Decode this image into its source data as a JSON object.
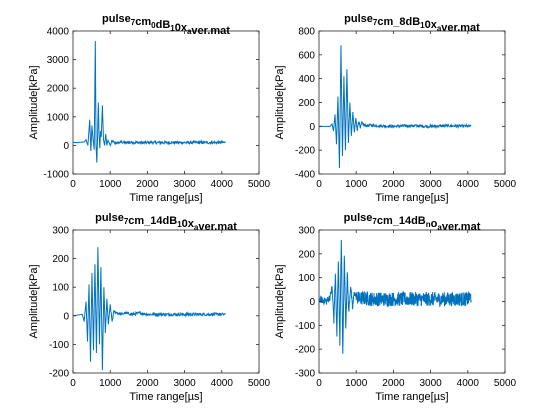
{
  "colors": {
    "line": "#0072BD",
    "axes": "#262626",
    "background": "#ffffff"
  },
  "chart_data": [
    {
      "type": "line",
      "title_parts": [
        [
          "pulse",
          ""
        ],
        [
          "7",
          "sub"
        ],
        [
          "cm",
          ""
        ],
        [
          "0",
          "sub"
        ],
        [
          "dB",
          ""
        ],
        [
          "1",
          "sub"
        ],
        [
          "0x",
          ""
        ],
        [
          "a",
          "sub"
        ],
        [
          "ver.mat",
          ""
        ]
      ],
      "xlabel": "Time range[µs]",
      "ylabel": "Amplitude[kPa]",
      "xlim": [
        0,
        5000
      ],
      "ylim": [
        -1000,
        4000
      ],
      "xticks": [
        "0",
        "1000",
        "2000",
        "3000",
        "4000",
        "5000"
      ],
      "yticks": [
        "-1000",
        "0",
        "1000",
        "2000",
        "3000",
        "4000"
      ],
      "grid": false,
      "series": [
        {
          "x": [
            0,
            100,
            200,
            300,
            350,
            400,
            450,
            480,
            510,
            540,
            570,
            600,
            620,
            640,
            660,
            680,
            700,
            720,
            740,
            760,
            790,
            820,
            850,
            880,
            910,
            940,
            970,
            1000,
            1050,
            1100,
            1200,
            1300,
            1400,
            1600,
            1800,
            2000,
            2500,
            3000,
            3500,
            4000,
            4090
          ],
          "y": [
            100,
            100,
            110,
            120,
            200,
            0,
            900,
            -200,
            700,
            200,
            -150,
            3650,
            0,
            -600,
            300,
            1500,
            400,
            -100,
            500,
            300,
            1400,
            200,
            0,
            400,
            0,
            180,
            100,
            0,
            150,
            100,
            80,
            120,
            90,
            110,
            95,
            100,
            100,
            100,
            100,
            100,
            100
          ]
        }
      ]
    },
    {
      "type": "line",
      "title_parts": [
        [
          "pulse",
          ""
        ],
        [
          "7",
          "sub"
        ],
        [
          "cm_8dB",
          ""
        ],
        [
          "1",
          "sub"
        ],
        [
          "0x",
          ""
        ],
        [
          "a",
          "sub"
        ],
        [
          "ver.mat",
          ""
        ]
      ],
      "xlabel": "Time range[µs]",
      "ylabel": "Amplitude[kPa]",
      "xlim": [
        0,
        5000
      ],
      "ylim": [
        -400,
        800
      ],
      "xticks": [
        "0",
        "1000",
        "2000",
        "3000",
        "4000",
        "5000"
      ],
      "yticks": [
        "-400",
        "-200",
        "0",
        "200",
        "400",
        "600",
        "800"
      ],
      "grid": false,
      "series": [
        {
          "x": [
            0,
            300,
            350,
            390,
            430,
            470,
            510,
            550,
            590,
            630,
            670,
            710,
            750,
            790,
            830,
            870,
            910,
            950,
            990,
            1030,
            1070,
            1110,
            1150,
            1200,
            1300,
            1400,
            1600,
            2000,
            2500,
            3000,
            3500,
            4090
          ],
          "y": [
            0,
            0,
            20,
            -40,
            100,
            -150,
            250,
            -350,
            680,
            -250,
            420,
            -200,
            480,
            -140,
            200,
            -80,
            120,
            -50,
            70,
            -30,
            50,
            -20,
            30,
            10,
            5,
            10,
            5,
            0,
            5,
            0,
            5,
            0
          ]
        }
      ]
    },
    {
      "type": "line",
      "title_parts": [
        [
          "pulse",
          ""
        ],
        [
          "7",
          "sub"
        ],
        [
          "cm_14dB",
          ""
        ],
        [
          "1",
          "sub"
        ],
        [
          "0x",
          ""
        ],
        [
          "a",
          "sub"
        ],
        [
          "ver.mat",
          ""
        ]
      ],
      "xlabel": "Time range[µs]",
      "ylabel": "Amplitude[kPa]",
      "xlim": [
        0,
        5000
      ],
      "ylim": [
        -200,
        300
      ],
      "xticks": [
        "0",
        "1000",
        "2000",
        "3000",
        "4000",
        "5000"
      ],
      "yticks": [
        "-200",
        "-100",
        "0",
        "100",
        "200",
        "300"
      ],
      "grid": false,
      "series": [
        {
          "x": [
            0,
            250,
            300,
            350,
            390,
            430,
            470,
            510,
            550,
            590,
            630,
            670,
            710,
            750,
            790,
            830,
            870,
            910,
            950,
            1000,
            1050,
            1100,
            1200,
            1300,
            1400,
            1600,
            1800,
            2000,
            2500,
            3000,
            3500,
            4090
          ],
          "y": [
            0,
            5,
            -20,
            50,
            -90,
            110,
            -160,
            150,
            -120,
            180,
            -130,
            240,
            -100,
            170,
            -190,
            100,
            -60,
            60,
            -30,
            40,
            -20,
            15,
            10,
            5,
            10,
            5,
            10,
            5,
            5,
            5,
            5,
            5
          ]
        }
      ]
    },
    {
      "type": "line",
      "title_parts": [
        [
          "pulse",
          ""
        ],
        [
          "7",
          "sub"
        ],
        [
          "cm_14dB",
          ""
        ],
        [
          "n",
          "sub"
        ],
        [
          "o",
          ""
        ],
        [
          "a",
          "sub"
        ],
        [
          "ver.mat",
          ""
        ]
      ],
      "xlabel": "Time range[µs]",
      "ylabel": "Amplitude[kPa]",
      "xlim": [
        0,
        5000
      ],
      "ylim": [
        -300,
        300
      ],
      "xticks": [
        "0",
        "1000",
        "2000",
        "3000",
        "4000",
        "5000"
      ],
      "yticks": [
        "-300",
        "-200",
        "-100",
        "0",
        "100",
        "200",
        "300"
      ],
      "grid": false,
      "noise_amplitude": 30,
      "series": [
        {
          "x": [
            0,
            200,
            300,
            350,
            400,
            440,
            480,
            520,
            560,
            600,
            640,
            680,
            720,
            760,
            800,
            850,
            900,
            950,
            1000,
            1100,
            1200,
            1400,
            1800,
            2500,
            3000,
            3500,
            4000,
            4090
          ],
          "y": [
            10,
            0,
            20,
            60,
            -80,
            120,
            -150,
            180,
            -180,
            270,
            -230,
            200,
            -110,
            120,
            -50,
            70,
            -30,
            40,
            20,
            10,
            15,
            10,
            10,
            10,
            10,
            10,
            10,
            20
          ]
        }
      ]
    }
  ]
}
